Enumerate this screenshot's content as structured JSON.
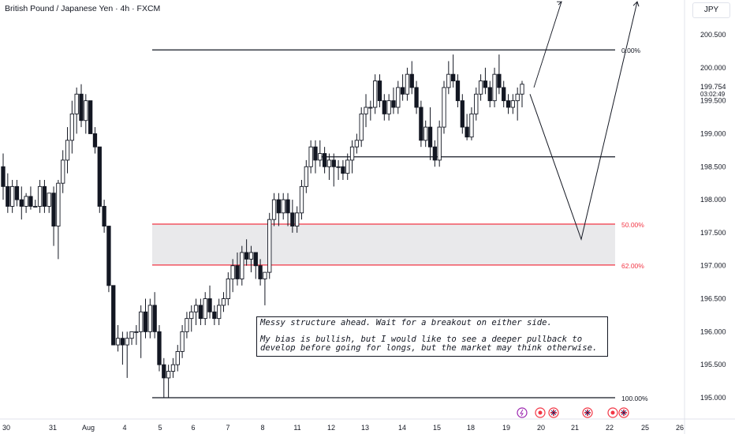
{
  "header": {
    "title": "British Pound / Japanese Yen · 4h · FXCM"
  },
  "currency_button": "JPY",
  "chart_data": {
    "type": "candlestick",
    "title": "British Pound / Japanese Yen · 4h · FXCM",
    "ylim": [
      194.9,
      201.1
    ],
    "y_ticks": [
      "200.500",
      "200.000",
      "199.500",
      "199.000",
      "198.500",
      "198.000",
      "197.500",
      "197.000",
      "196.500",
      "196.000",
      "195.500",
      "195.000"
    ],
    "x_ticks": [
      "30",
      "31",
      "Aug",
      "4",
      "5",
      "6",
      "7",
      "8",
      "11",
      "12",
      "13",
      "14",
      "15",
      "18",
      "19",
      "20",
      "21",
      "22",
      "25",
      "26"
    ],
    "last_price": {
      "value": "199.754",
      "countdown": "03:02:49"
    },
    "fib_levels": [
      {
        "label": "0.00%",
        "price": 200.27,
        "color": "#131722"
      },
      {
        "label": "50.00%",
        "price": 197.63,
        "color": "#f23645"
      },
      {
        "label": "62.00%",
        "price": 197.01,
        "color": "#f23645"
      },
      {
        "label": "100.00%",
        "price": 195.0,
        "color": "#131722"
      }
    ],
    "support_level": 198.65,
    "zone": {
      "top": 197.63,
      "bottom": 197.01
    },
    "annotation": {
      "line1": "Messy structure ahead. Wait for a breakout on either side.",
      "line2": "My bias is bullish, but I would like to see a deeper pullback to develop before going for longs, but the market may think otherwise."
    },
    "projection_paths": [
      [
        [
          199.6,
          199.7
        ],
        [
          200.1,
          201.0
        ]
      ],
      [
        [
          199.6,
          197.4
        ],
        [
          197.4,
          201.0
        ]
      ]
    ],
    "candles": [
      [
        198.5,
        198.7,
        198.0,
        198.2
      ],
      [
        198.2,
        198.4,
        197.8,
        197.9
      ],
      [
        197.9,
        198.3,
        197.8,
        198.2
      ],
      [
        198.2,
        198.3,
        197.9,
        198.0
      ],
      [
        198.0,
        198.2,
        197.7,
        197.9
      ],
      [
        197.9,
        198.1,
        197.8,
        198.05
      ],
      [
        198.05,
        198.2,
        197.85,
        197.9
      ],
      [
        197.9,
        198.0,
        197.9,
        197.9
      ],
      [
        197.9,
        198.3,
        197.8,
        198.2
      ],
      [
        198.2,
        198.3,
        197.8,
        197.9
      ],
      [
        197.9,
        198.1,
        197.8,
        198.1
      ],
      [
        198.1,
        198.2,
        197.3,
        197.6
      ],
      [
        197.6,
        198.3,
        197.1,
        198.25
      ],
      [
        198.25,
        198.75,
        198.1,
        198.6
      ],
      [
        198.6,
        199.1,
        198.4,
        198.9
      ],
      [
        198.9,
        199.5,
        198.7,
        199.3
      ],
      [
        199.3,
        199.7,
        199.0,
        199.6
      ],
      [
        199.6,
        199.75,
        199.1,
        199.2
      ],
      [
        199.2,
        199.6,
        199.0,
        199.5
      ],
      [
        199.5,
        199.5,
        199.0,
        199.0
      ],
      [
        199.0,
        199.1,
        198.7,
        198.8
      ],
      [
        198.8,
        198.8,
        197.8,
        197.9
      ],
      [
        197.9,
        198.0,
        197.5,
        197.6
      ],
      [
        197.6,
        197.6,
        196.6,
        196.7
      ],
      [
        196.7,
        196.7,
        195.8,
        195.8
      ],
      [
        195.8,
        196.1,
        195.7,
        195.9
      ],
      [
        195.9,
        196.0,
        195.5,
        195.8
      ],
      [
        195.8,
        196.0,
        195.3,
        195.9
      ],
      [
        195.9,
        196.0,
        195.8,
        196.0
      ],
      [
        196.0,
        196.1,
        195.8,
        196.0
      ],
      [
        196.0,
        196.4,
        195.6,
        196.3
      ],
      [
        196.3,
        196.5,
        195.9,
        196.0
      ],
      [
        196.0,
        196.5,
        195.9,
        196.4
      ],
      [
        196.4,
        196.6,
        195.9,
        196.0
      ],
      [
        196.0,
        196.1,
        195.4,
        195.5
      ],
      [
        195.5,
        195.6,
        195.0,
        195.3
      ],
      [
        195.3,
        195.5,
        195.0,
        195.4
      ],
      [
        195.4,
        195.6,
        195.3,
        195.5
      ],
      [
        195.5,
        195.8,
        195.4,
        195.7
      ],
      [
        195.7,
        196.1,
        195.6,
        196.0
      ],
      [
        196.0,
        196.3,
        195.9,
        196.2
      ],
      [
        196.2,
        196.4,
        196.0,
        196.3
      ],
      [
        196.3,
        196.5,
        196.1,
        196.4
      ],
      [
        196.4,
        196.5,
        196.1,
        196.2
      ],
      [
        196.2,
        196.6,
        196.1,
        196.5
      ],
      [
        196.5,
        196.7,
        196.2,
        196.3
      ],
      [
        196.3,
        196.4,
        196.1,
        196.2
      ],
      [
        196.2,
        196.5,
        196.1,
        196.4
      ],
      [
        196.4,
        196.6,
        196.3,
        196.5
      ],
      [
        196.5,
        196.9,
        196.4,
        196.8
      ],
      [
        196.8,
        197.1,
        196.6,
        197.0
      ],
      [
        197.0,
        197.2,
        196.7,
        196.8
      ],
      [
        196.8,
        197.3,
        196.7,
        197.2
      ],
      [
        197.2,
        197.4,
        197.0,
        197.1
      ],
      [
        197.1,
        197.3,
        196.9,
        197.2
      ],
      [
        197.2,
        197.2,
        196.8,
        197.0
      ],
      [
        197.0,
        197.1,
        196.7,
        196.8
      ],
      [
        196.8,
        196.9,
        196.4,
        196.9
      ],
      [
        196.9,
        197.8,
        196.8,
        197.7
      ],
      [
        197.7,
        198.1,
        197.6,
        198.0
      ],
      [
        198.0,
        198.1,
        197.6,
        197.8
      ],
      [
        197.8,
        198.1,
        197.7,
        198.0
      ],
      [
        198.0,
        198.1,
        197.6,
        197.8
      ],
      [
        197.8,
        198.0,
        197.5,
        197.6
      ],
      [
        197.6,
        197.9,
        197.5,
        197.8
      ],
      [
        197.8,
        198.3,
        197.7,
        198.2
      ],
      [
        198.2,
        198.6,
        198.1,
        198.5
      ],
      [
        198.5,
        198.9,
        198.4,
        198.8
      ],
      [
        198.8,
        198.9,
        198.4,
        198.6
      ],
      [
        198.6,
        198.9,
        198.5,
        198.7
      ],
      [
        198.7,
        198.8,
        198.4,
        198.5
      ],
      [
        198.5,
        198.7,
        198.3,
        198.6
      ],
      [
        198.6,
        198.7,
        198.2,
        198.5
      ],
      [
        198.5,
        198.6,
        198.3,
        198.5
      ],
      [
        198.5,
        198.6,
        198.3,
        198.4
      ],
      [
        198.4,
        198.7,
        198.3,
        198.6
      ],
      [
        198.6,
        198.9,
        198.4,
        198.8
      ],
      [
        198.8,
        199.0,
        198.7,
        198.9
      ],
      [
        198.9,
        199.4,
        198.8,
        199.3
      ],
      [
        199.3,
        199.6,
        199.1,
        199.4
      ],
      [
        199.4,
        199.5,
        199.2,
        199.4
      ],
      [
        199.4,
        199.9,
        199.3,
        199.8
      ],
      [
        199.8,
        199.9,
        199.4,
        199.5
      ],
      [
        199.5,
        199.6,
        199.2,
        199.3
      ],
      [
        199.3,
        199.6,
        199.2,
        199.5
      ],
      [
        199.5,
        199.7,
        199.3,
        199.4
      ],
      [
        199.4,
        199.8,
        199.3,
        199.7
      ],
      [
        199.7,
        199.9,
        199.5,
        199.6
      ],
      [
        199.6,
        200.0,
        199.5,
        199.9
      ],
      [
        199.9,
        200.1,
        199.6,
        199.7
      ],
      [
        199.7,
        199.8,
        199.3,
        199.4
      ],
      [
        199.4,
        199.5,
        198.8,
        198.9
      ],
      [
        198.9,
        199.2,
        198.8,
        199.1
      ],
      [
        199.1,
        199.4,
        198.6,
        198.8
      ],
      [
        198.8,
        198.9,
        198.5,
        198.6
      ],
      [
        198.6,
        199.2,
        198.5,
        199.1
      ],
      [
        199.1,
        199.8,
        199.0,
        199.7
      ],
      [
        199.7,
        200.1,
        199.6,
        199.9
      ],
      [
        199.9,
        200.2,
        199.7,
        199.8
      ],
      [
        199.8,
        199.9,
        199.4,
        199.5
      ],
      [
        199.5,
        199.6,
        199.0,
        199.1
      ],
      [
        199.1,
        199.3,
        198.9,
        198.95
      ],
      [
        198.95,
        199.4,
        198.9,
        199.3
      ],
      [
        199.3,
        199.7,
        199.2,
        199.6
      ],
      [
        199.6,
        199.9,
        199.5,
        199.8
      ],
      [
        199.8,
        200.0,
        199.6,
        199.7
      ],
      [
        199.7,
        199.8,
        199.4,
        199.5
      ],
      [
        199.5,
        200.0,
        199.4,
        199.9
      ],
      [
        199.9,
        200.2,
        199.6,
        199.7
      ],
      [
        199.7,
        199.8,
        199.4,
        199.5
      ],
      [
        199.5,
        199.6,
        199.3,
        199.4
      ],
      [
        199.4,
        199.6,
        199.3,
        199.5
      ],
      [
        199.5,
        199.7,
        199.2,
        199.6
      ],
      [
        199.6,
        199.8,
        199.4,
        199.75
      ]
    ]
  },
  "event_icons": [
    "lightning-icon",
    "event-icon",
    "gb-flag-icon",
    "gb-flag-icon",
    "event-icon",
    "gb-flag-icon"
  ]
}
